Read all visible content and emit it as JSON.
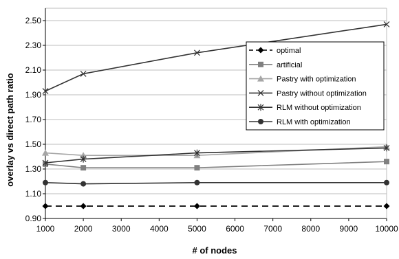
{
  "chart_data": {
    "type": "line",
    "title": "",
    "xlabel": "# of nodes",
    "ylabel": "overlay vs direct path ratio",
    "x": [
      1000,
      2000,
      5000,
      10000
    ],
    "xlim": [
      1000,
      10000
    ],
    "ylim": [
      0.9,
      2.6
    ],
    "x_ticks": [
      1000,
      2000,
      3000,
      4000,
      5000,
      6000,
      7000,
      8000,
      9000,
      10000
    ],
    "y_ticks": [
      "0.90",
      "1.10",
      "1.30",
      "1.50",
      "1.70",
      "1.90",
      "2.10",
      "2.30",
      "2.50"
    ],
    "grid": "horizontal",
    "legend_position": "right",
    "series": [
      {
        "name": "optimal",
        "values": [
          1.0,
          1.0,
          1.0,
          1.0
        ],
        "color": "#000000",
        "marker": "diamond",
        "dash": true
      },
      {
        "name": "artificial",
        "values": [
          1.34,
          1.31,
          1.31,
          1.36
        ],
        "color": "#808080",
        "marker": "square",
        "dash": false
      },
      {
        "name": "Pastry with optimization",
        "values": [
          1.43,
          1.41,
          1.41,
          1.48
        ],
        "color": "#a6a6a6",
        "marker": "triangle",
        "dash": false
      },
      {
        "name": "Pastry without optimization",
        "values": [
          1.93,
          2.07,
          2.24,
          2.47
        ],
        "color": "#333333",
        "marker": "x",
        "dash": false
      },
      {
        "name": "RLM without optimization",
        "values": [
          1.35,
          1.38,
          1.43,
          1.47
        ],
        "color": "#333333",
        "marker": "asterisk",
        "dash": false
      },
      {
        "name": "RLM with optimization",
        "values": [
          1.19,
          1.18,
          1.19,
          1.19
        ],
        "color": "#333333",
        "marker": "circle",
        "dash": false
      }
    ]
  }
}
